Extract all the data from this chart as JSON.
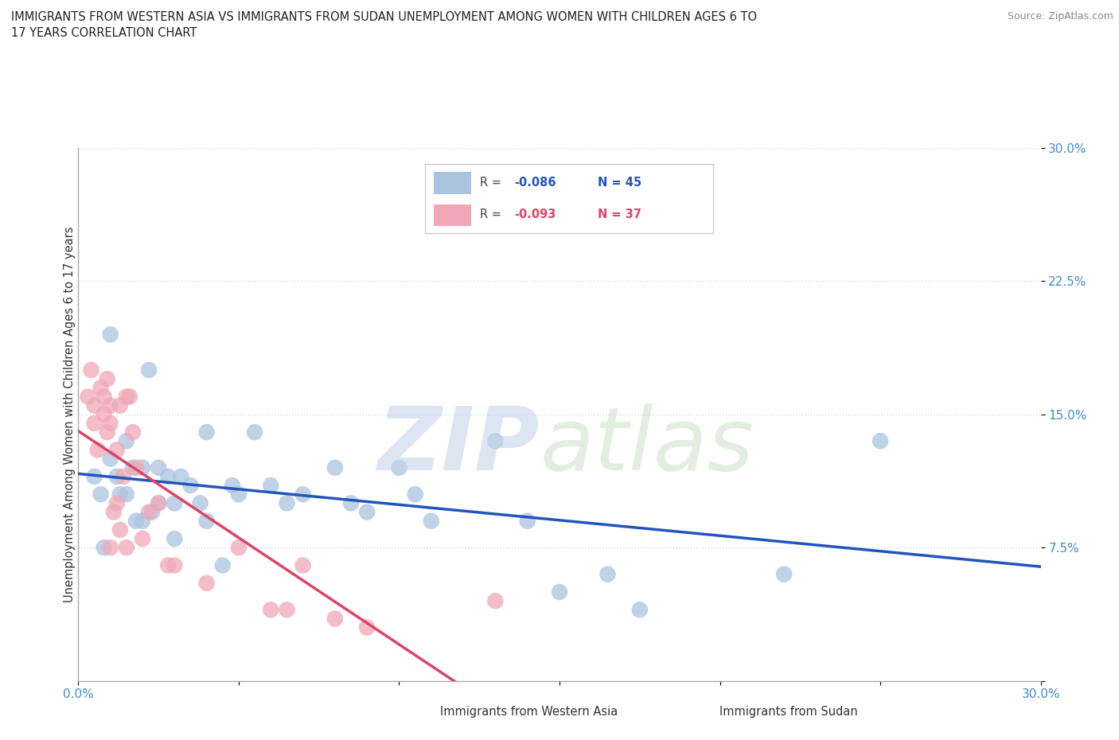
{
  "title_line1": "IMMIGRANTS FROM WESTERN ASIA VS IMMIGRANTS FROM SUDAN UNEMPLOYMENT AMONG WOMEN WITH CHILDREN AGES 6 TO",
  "title_line2": "17 YEARS CORRELATION CHART",
  "source": "Source: ZipAtlas.com",
  "ylabel": "Unemployment Among Women with Children Ages 6 to 17 years",
  "xlim": [
    0.0,
    0.3
  ],
  "ylim": [
    0.0,
    0.3
  ],
  "yticks": [
    0.0,
    0.075,
    0.15,
    0.225,
    0.3
  ],
  "ytick_labels": [
    "",
    "7.5%",
    "15.0%",
    "22.5%",
    "30.0%"
  ],
  "xtick_labels": [
    "0.0%",
    "",
    "",
    "",
    "",
    "",
    "30.0%"
  ],
  "western_asia_R": -0.086,
  "western_asia_N": 45,
  "sudan_R": -0.093,
  "sudan_N": 37,
  "background_color": "#ffffff",
  "grid_color": "#d8d8d8",
  "western_asia_color": "#aac4e0",
  "western_asia_line_color": "#2255bb",
  "sudan_color": "#f0a8b8",
  "sudan_line_color": "#dd4466",
  "wa_x": [
    0.005,
    0.007,
    0.008,
    0.01,
    0.01,
    0.012,
    0.013,
    0.015,
    0.015,
    0.017,
    0.018,
    0.02,
    0.02,
    0.022,
    0.023,
    0.025,
    0.025,
    0.028,
    0.03,
    0.03,
    0.032,
    0.035,
    0.038,
    0.04,
    0.04,
    0.045,
    0.048,
    0.05,
    0.055,
    0.06,
    0.065,
    0.07,
    0.08,
    0.085,
    0.09,
    0.1,
    0.105,
    0.11,
    0.13,
    0.14,
    0.15,
    0.165,
    0.175,
    0.22,
    0.25
  ],
  "wa_y": [
    0.115,
    0.105,
    0.075,
    0.195,
    0.125,
    0.115,
    0.105,
    0.135,
    0.105,
    0.12,
    0.09,
    0.12,
    0.09,
    0.175,
    0.095,
    0.12,
    0.1,
    0.115,
    0.1,
    0.08,
    0.115,
    0.11,
    0.1,
    0.14,
    0.09,
    0.065,
    0.11,
    0.105,
    0.14,
    0.11,
    0.1,
    0.105,
    0.12,
    0.1,
    0.095,
    0.12,
    0.105,
    0.09,
    0.135,
    0.09,
    0.05,
    0.06,
    0.04,
    0.06,
    0.135
  ],
  "su_x": [
    0.003,
    0.004,
    0.005,
    0.005,
    0.006,
    0.007,
    0.008,
    0.008,
    0.009,
    0.009,
    0.01,
    0.01,
    0.01,
    0.011,
    0.012,
    0.012,
    0.013,
    0.013,
    0.014,
    0.015,
    0.015,
    0.016,
    0.017,
    0.018,
    0.02,
    0.022,
    0.025,
    0.028,
    0.03,
    0.04,
    0.05,
    0.06,
    0.065,
    0.07,
    0.08,
    0.09,
    0.13
  ],
  "su_y": [
    0.16,
    0.175,
    0.155,
    0.145,
    0.13,
    0.165,
    0.16,
    0.15,
    0.14,
    0.17,
    0.155,
    0.145,
    0.075,
    0.095,
    0.13,
    0.1,
    0.155,
    0.085,
    0.115,
    0.16,
    0.075,
    0.16,
    0.14,
    0.12,
    0.08,
    0.095,
    0.1,
    0.065,
    0.065,
    0.055,
    0.075,
    0.04,
    0.04,
    0.065,
    0.035,
    0.03,
    0.045
  ]
}
